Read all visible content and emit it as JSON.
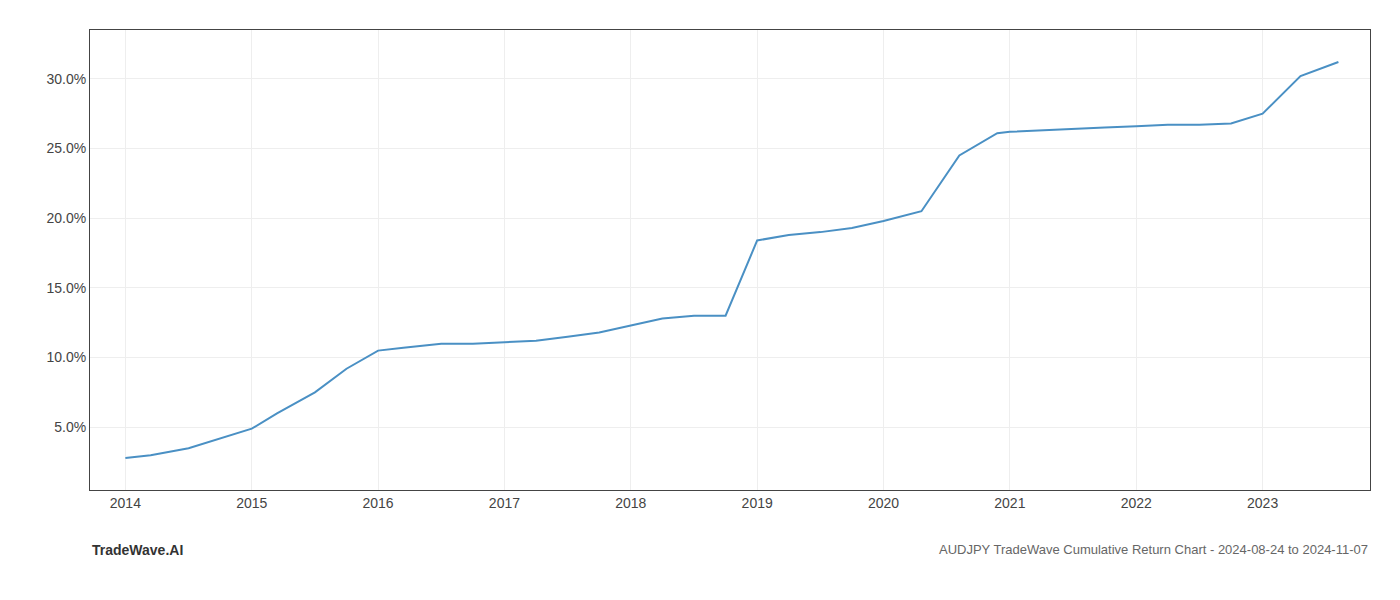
{
  "chart_data": {
    "type": "line",
    "title": "AUDJPY TradeWave Cumulative Return Chart - 2024-08-24 to 2024-11-07",
    "annotations": [
      "TradeWave.AI"
    ],
    "x": [
      2014.0,
      2014.2,
      2014.5,
      2014.75,
      2015.0,
      2015.2,
      2015.5,
      2015.75,
      2016.0,
      2016.2,
      2016.5,
      2016.75,
      2017.0,
      2017.25,
      2017.5,
      2017.75,
      2018.0,
      2018.25,
      2018.5,
      2018.75,
      2019.0,
      2019.25,
      2019.5,
      2019.75,
      2020.0,
      2020.3,
      2020.6,
      2020.9,
      2021.0,
      2021.3,
      2021.5,
      2021.75,
      2022.0,
      2022.25,
      2022.5,
      2022.75,
      2023.0,
      2023.3,
      2023.6
    ],
    "values": [
      2.8,
      3.0,
      3.5,
      4.2,
      4.9,
      6.0,
      7.5,
      9.2,
      10.5,
      10.7,
      11.0,
      11.0,
      11.1,
      11.2,
      11.5,
      11.8,
      12.3,
      12.8,
      13.0,
      13.0,
      18.4,
      18.8,
      19.0,
      19.3,
      19.8,
      20.5,
      24.5,
      26.1,
      26.2,
      26.3,
      26.4,
      26.5,
      26.6,
      26.7,
      26.7,
      26.8,
      27.5,
      30.2,
      31.2
    ],
    "color": "#4a90c4",
    "xlim": [
      2013.72,
      2023.85
    ],
    "xticks": [
      2014,
      2015,
      2016,
      2017,
      2018,
      2019,
      2020,
      2021,
      2022,
      2023
    ],
    "ylim": [
      0.5,
      33.5
    ],
    "yticks": [
      {
        "value": 5.0,
        "label": "5.0%"
      },
      {
        "value": 10.0,
        "label": "10.0%"
      },
      {
        "value": 15.0,
        "label": "15.0%"
      },
      {
        "value": 20.0,
        "label": "20.0%"
      },
      {
        "value": 25.0,
        "label": "25.0%"
      },
      {
        "value": 30.0,
        "label": "30.0%"
      }
    ],
    "grid": true
  }
}
